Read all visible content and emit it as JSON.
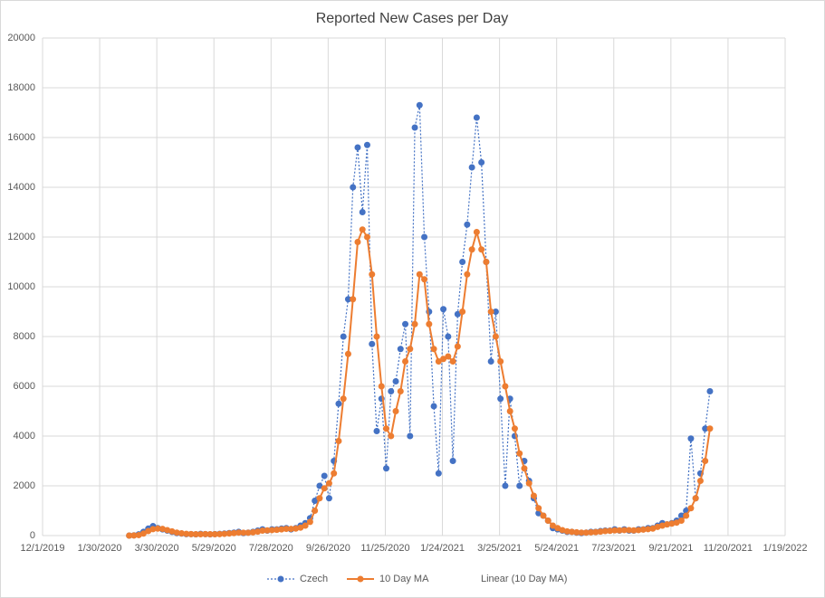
{
  "chart_data": {
    "type": "line",
    "title": "Reported New Cases per Day",
    "x": [
      "3/1/2020",
      "3/6/2020",
      "3/11/2020",
      "3/16/2020",
      "3/21/2020",
      "3/26/2020",
      "3/31/2020",
      "4/5/2020",
      "4/10/2020",
      "4/15/2020",
      "4/20/2020",
      "4/25/2020",
      "4/30/2020",
      "5/5/2020",
      "5/10/2020",
      "5/15/2020",
      "5/20/2020",
      "5/25/2020",
      "5/30/2020",
      "6/4/2020",
      "6/9/2020",
      "6/14/2020",
      "6/19/2020",
      "6/24/2020",
      "6/29/2020",
      "7/4/2020",
      "7/9/2020",
      "7/14/2020",
      "7/19/2020",
      "7/24/2020",
      "7/29/2020",
      "8/3/2020",
      "8/8/2020",
      "8/13/2020",
      "8/18/2020",
      "8/23/2020",
      "8/28/2020",
      "9/2/2020",
      "9/7/2020",
      "9/12/2020",
      "9/17/2020",
      "9/22/2020",
      "9/27/2020",
      "10/2/2020",
      "10/7/2020",
      "10/12/2020",
      "10/17/2020",
      "10/22/2020",
      "10/27/2020",
      "11/1/2020",
      "11/6/2020",
      "11/11/2020",
      "11/16/2020",
      "11/21/2020",
      "11/26/2020",
      "12/1/2020",
      "12/6/2020",
      "12/11/2020",
      "12/16/2020",
      "12/21/2020",
      "12/26/2020",
      "12/31/2020",
      "1/5/2021",
      "1/10/2021",
      "1/15/2021",
      "1/20/2021",
      "1/25/2021",
      "1/30/2021",
      "2/4/2021",
      "2/9/2021",
      "2/14/2021",
      "2/19/2021",
      "2/24/2021",
      "3/1/2021",
      "3/6/2021",
      "3/11/2021",
      "3/16/2021",
      "3/21/2021",
      "3/26/2021",
      "3/31/2021",
      "4/5/2021",
      "4/10/2021",
      "4/15/2021",
      "4/20/2021",
      "4/25/2021",
      "4/30/2021",
      "5/5/2021",
      "5/10/2021",
      "5/15/2021",
      "5/20/2021",
      "5/25/2021",
      "5/30/2021",
      "6/4/2021",
      "6/9/2021",
      "6/14/2021",
      "6/19/2021",
      "6/24/2021",
      "6/29/2021",
      "7/4/2021",
      "7/9/2021",
      "7/14/2021",
      "7/19/2021",
      "7/24/2021",
      "7/29/2021",
      "8/3/2021",
      "8/8/2021",
      "8/13/2021",
      "8/18/2021",
      "8/23/2021",
      "8/28/2021",
      "9/2/2021",
      "9/7/2021",
      "9/12/2021",
      "9/17/2021",
      "9/22/2021",
      "9/27/2021",
      "10/2/2021",
      "10/7/2021",
      "10/12/2021",
      "10/17/2021",
      "10/22/2021",
      "10/27/2021",
      "11/1/2021"
    ],
    "series": [
      {
        "name": "Czech",
        "color": "#4472c4",
        "values": [
          0,
          10,
          50,
          150,
          280,
          380,
          300,
          250,
          200,
          150,
          100,
          80,
          60,
          60,
          50,
          70,
          60,
          50,
          60,
          70,
          80,
          100,
          120,
          150,
          100,
          120,
          150,
          200,
          250,
          200,
          250,
          250,
          280,
          300,
          250,
          300,
          400,
          500,
          700,
          1400,
          2000,
          2400,
          1500,
          3000,
          5300,
          8000,
          9500,
          14000,
          15600,
          13000,
          15700,
          7700,
          4200,
          5500,
          2700,
          5800,
          6200,
          7500,
          8500,
          4000,
          16400,
          17300,
          12000,
          9000,
          5200,
          2500,
          9100,
          8000,
          3000,
          8900,
          11000,
          12500,
          14800,
          16800,
          15000,
          11000,
          7000,
          9000,
          5500,
          2000,
          5500,
          4000,
          2000,
          3000,
          2200,
          1500,
          900,
          800,
          600,
          300,
          250,
          200,
          150,
          150,
          120,
          100,
          120,
          150,
          150,
          180,
          200,
          200,
          250,
          200,
          250,
          200,
          200,
          250,
          250,
          300,
          300,
          400,
          500,
          450,
          500,
          600,
          800,
          1000,
          3900,
          1500,
          2500,
          4300,
          5800
        ]
      },
      {
        "name": "10 Day MA",
        "color": "#ed7d31",
        "values": [
          0,
          5,
          20,
          80,
          180,
          260,
          280,
          270,
          220,
          170,
          120,
          90,
          70,
          60,
          55,
          55,
          60,
          55,
          55,
          60,
          70,
          85,
          100,
          120,
          115,
          115,
          130,
          160,
          200,
          210,
          220,
          230,
          250,
          270,
          270,
          280,
          320,
          400,
          550,
          1000,
          1500,
          1900,
          2100,
          2500,
          3800,
          5500,
          7300,
          9500,
          11800,
          12300,
          12000,
          10500,
          8000,
          6000,
          4300,
          4000,
          5000,
          5800,
          7000,
          7500,
          8500,
          10500,
          10300,
          8500,
          7500,
          7000,
          7100,
          7200,
          7000,
          7600,
          9000,
          10500,
          11500,
          12200,
          11500,
          11000,
          9000,
          8000,
          7000,
          6000,
          5000,
          4300,
          3300,
          2700,
          2100,
          1600,
          1100,
          800,
          600,
          400,
          300,
          220,
          170,
          150,
          130,
          120,
          120,
          130,
          140,
          160,
          180,
          190,
          210,
          210,
          220,
          220,
          210,
          220,
          240,
          260,
          280,
          350,
          400,
          450,
          480,
          520,
          600,
          800,
          1100,
          1500,
          2200,
          3000,
          4300
        ]
      }
    ],
    "trendline": {
      "name": "Linear (10 Day MA)"
    },
    "xlim": [
      "12/1/2019",
      "1/19/2022"
    ],
    "xticks": [
      "12/1/2019",
      "1/30/2020",
      "3/30/2020",
      "5/29/2020",
      "7/28/2020",
      "9/26/2020",
      "11/25/2020",
      "1/24/2021",
      "3/25/2021",
      "5/24/2021",
      "7/23/2021",
      "9/21/2021",
      "11/20/2021",
      "1/19/2022"
    ],
    "ylim": [
      0,
      20000
    ],
    "yticks": [
      0,
      2000,
      4000,
      6000,
      8000,
      10000,
      12000,
      14000,
      16000,
      18000,
      20000
    ],
    "grid": true,
    "legend": "bottom"
  }
}
